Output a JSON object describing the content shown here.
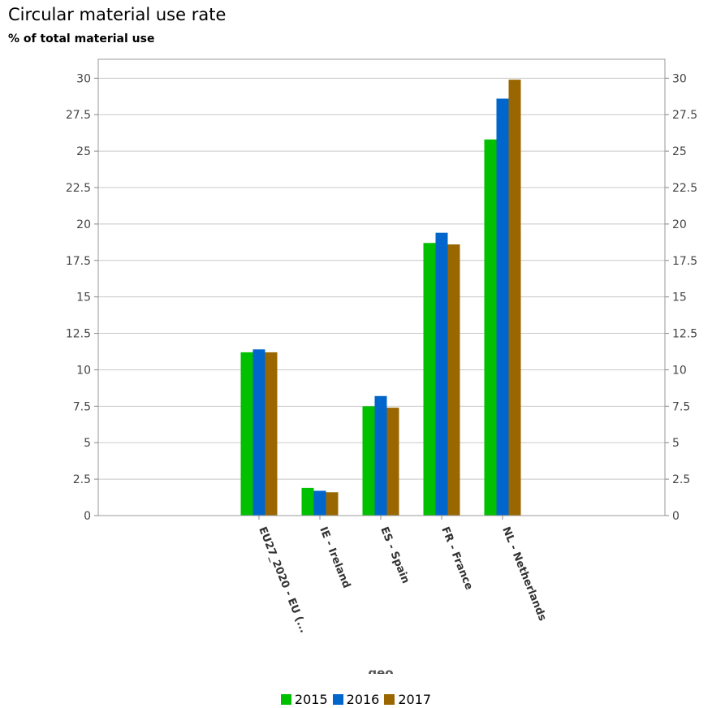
{
  "chart_data": {
    "type": "bar",
    "title": "Circular material use rate",
    "subtitle": "% of total material use",
    "xlabel": "geo",
    "ylabel": "",
    "ylim": [
      0,
      31.3
    ],
    "yticks": [
      "0",
      "2.5",
      "5",
      "7.5",
      "10",
      "12.5",
      "15",
      "17.5",
      "20",
      "22.5",
      "25",
      "27.5",
      "30"
    ],
    "ytick_values": [
      0,
      2.5,
      5,
      7.5,
      10,
      12.5,
      15,
      17.5,
      20,
      22.5,
      25,
      27.5,
      30
    ],
    "grid": true,
    "legend_position": "bottom",
    "categories": [
      "EU27_2020 - EU (...",
      "IE - Ireland",
      "ES - Spain",
      "FR - France",
      "NL - Netherlands"
    ],
    "series": [
      {
        "name": "2015",
        "color": "#00c000",
        "values": [
          11.2,
          1.9,
          7.5,
          18.7,
          25.8
        ]
      },
      {
        "name": "2016",
        "color": "#0066cc",
        "values": [
          11.4,
          1.7,
          8.2,
          19.4,
          28.6
        ]
      },
      {
        "name": "2017",
        "color": "#996600",
        "values": [
          11.2,
          1.6,
          7.4,
          18.6,
          29.9
        ]
      }
    ]
  }
}
